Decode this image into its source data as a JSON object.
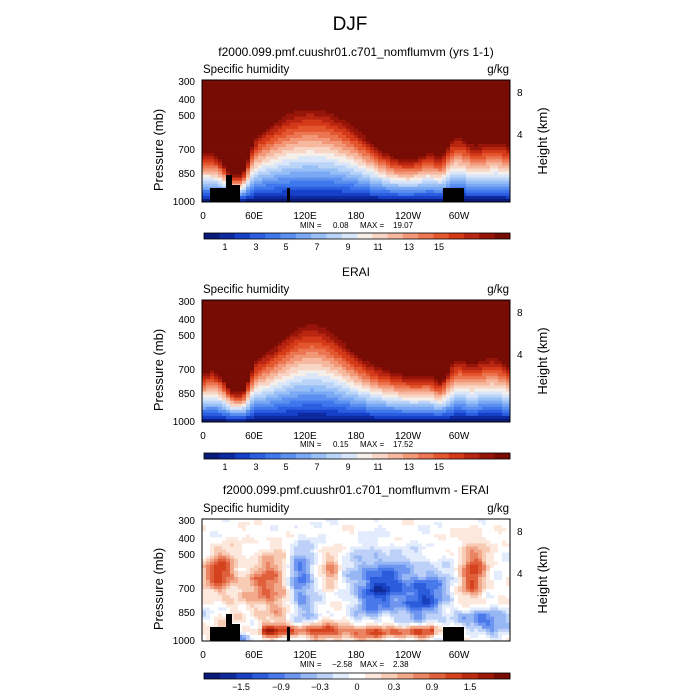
{
  "page": {
    "title": "DJF"
  },
  "colorbars": {
    "humidity": {
      "colors": [
        "#0a1a78",
        "#0d2aa0",
        "#1640c8",
        "#2b5ee0",
        "#3f78ec",
        "#5b90f0",
        "#7aa8f4",
        "#98bff6",
        "#b9d4f8",
        "#d9e6fa",
        "#f6eee8",
        "#f8d5c4",
        "#f6b89e",
        "#f29878",
        "#ec7552",
        "#e4562e",
        "#d43a18",
        "#b82510",
        "#961408",
        "#760c04"
      ],
      "labels": [
        "1",
        "3",
        "5",
        "7",
        "9",
        "11",
        "13",
        "15"
      ]
    },
    "difference": {
      "colors": [
        "#0a1a78",
        "#102a98",
        "#1840c0",
        "#2a5cdc",
        "#4878ea",
        "#6e96f0",
        "#96b6f4",
        "#bcd0f8",
        "#e2ecfc",
        "#ffffff",
        "#fde8de",
        "#f8cbb4",
        "#f2a88a",
        "#ea8462",
        "#e0603c",
        "#d4421e",
        "#bc2a10",
        "#9e1808",
        "#7a0c04"
      ],
      "labels": [
        "−1.5",
        "−0.9",
        "−0.3",
        "0",
        "0.3",
        "0.9",
        "1.5"
      ]
    }
  },
  "chart_data": [
    {
      "type": "heatmap",
      "title": "f2000.099.pmf.cuushr01.c701_nomflumvm (yrs 1-1)",
      "variable_label": "Specific humidity",
      "units": "g/kg",
      "ylabel": "Pressure  (mb)",
      "right_label": "Height  (km)",
      "x_ticks": [
        "0",
        "60E",
        "120E",
        "180",
        "120W",
        "60W"
      ],
      "y_ticks": [
        "300",
        "400",
        "500",
        "700",
        "850",
        "1000"
      ],
      "right_ticks": [
        "8",
        "4"
      ],
      "min": 0.08,
      "max": 19.07,
      "min_label": "MIN =",
      "max_label": "MAX =",
      "min_text": "0.08",
      "max_text": "19.07",
      "kind": "humidity",
      "has_terrain": true
    },
    {
      "type": "heatmap",
      "title": "ERAI",
      "variable_label": "Specific humidity",
      "units": "g/kg",
      "ylabel": "Pressure  (mb)",
      "right_label": "Height  (km)",
      "x_ticks": [
        "0",
        "60E",
        "120E",
        "180",
        "120W",
        "60W"
      ],
      "y_ticks": [
        "300",
        "400",
        "500",
        "700",
        "850",
        "1000"
      ],
      "right_ticks": [
        "8",
        "4"
      ],
      "min": 0.15,
      "max": 17.52,
      "min_label": "MIN =",
      "max_label": "MAX =",
      "min_text": "0.15",
      "max_text": "17.52",
      "kind": "humidity",
      "has_terrain": false
    },
    {
      "type": "heatmap",
      "title": "f2000.099.pmf.cuushr01.c701_nomflumvm - ERAI",
      "variable_label": "Specific humidity",
      "units": "g/kg",
      "ylabel": "Pressure  (mb)",
      "right_label": "Height  (km)",
      "x_ticks": [
        "0",
        "60E",
        "120E",
        "180",
        "120W",
        "60W"
      ],
      "y_ticks": [
        "300",
        "400",
        "500",
        "700",
        "850",
        "1000"
      ],
      "right_ticks": [
        "8",
        "4"
      ],
      "min": -2.58,
      "max": 2.38,
      "min_label": "MIN =",
      "max_label": "MAX =",
      "min_text": "−2.58",
      "max_text": "2.38",
      "kind": "difference",
      "has_terrain": true
    }
  ]
}
